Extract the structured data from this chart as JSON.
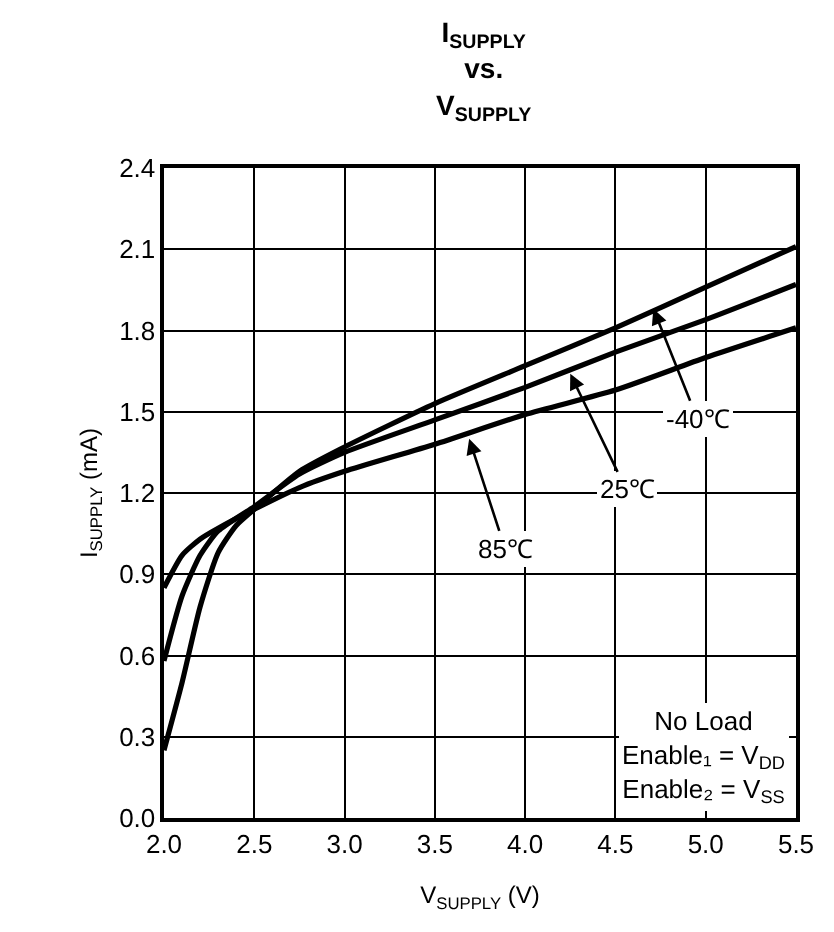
{
  "chart_data": {
    "type": "line",
    "title": "I$_{SUPPLY}$\nvs.\nV$_{SUPPLY}$",
    "xlabel": "V$_{SUPPLY}$ (V)",
    "ylabel": "I$_{SUPPLY}$ (mA)",
    "series": [
      {
        "color": "#000000",
        "x": [
          2.0,
          2.1,
          2.2,
          2.3,
          2.4,
          2.5,
          2.75,
          3.0,
          3.5,
          4.0,
          4.5,
          5.0,
          5.5
        ],
        "values": [
          0.25,
          0.5,
          0.78,
          0.98,
          1.08,
          1.14,
          1.28,
          1.37,
          1.53,
          1.67,
          1.81,
          1.96,
          2.11
        ]
      },
      {
        "color": "#000000",
        "x": [
          2.0,
          2.1,
          2.2,
          2.3,
          2.5,
          2.75,
          3.0,
          3.5,
          4.0,
          4.5,
          5.0,
          5.5
        ],
        "values": [
          0.58,
          0.82,
          0.97,
          1.06,
          1.15,
          1.27,
          1.35,
          1.47,
          1.59,
          1.72,
          1.84,
          1.97
        ]
      },
      {
        "color": "#000000",
        "x": [
          2.0,
          2.1,
          2.2,
          2.3,
          2.5,
          2.75,
          3.0,
          3.5,
          4.0,
          4.5,
          5.0,
          5.5
        ],
        "values": [
          0.85,
          0.97,
          1.03,
          1.07,
          1.14,
          1.22,
          1.28,
          1.38,
          1.49,
          1.58,
          1.7,
          1.81
        ]
      }
    ],
    "annotations": [
      {
        "text": "-40℃",
        "x": 4.71,
        "y": 1.88
      },
      {
        "text": "25℃",
        "x": 4.25,
        "y": 1.64
      },
      {
        "text": "85℃",
        "x": 3.69,
        "y": 1.4
      },
      "No Load\nEnable₁ = V$_{DD}$\nEnable₂ = V$_{SS}$"
    ],
    "xlim": [
      2.0,
      5.5
    ],
    "xticks": [
      {
        "value": 2.0,
        "label": "2.0"
      },
      2.5,
      {
        "value": 3.0,
        "label": "3.0"
      },
      3.5,
      {
        "value": 4.0,
        "label": "4.0"
      },
      4.5,
      {
        "value": 5.0,
        "label": "5.0"
      },
      5.5
    ],
    "ylim": [
      0.0,
      2.4
    ],
    "yticks": [
      {
        "value": 0.0,
        "label": "0.0"
      },
      0.3,
      0.6,
      0.9,
      1.2,
      1.5,
      1.8,
      2.1,
      2.4
    ],
    "grid": true,
    "marker": "none",
    "line_style": "solid"
  }
}
